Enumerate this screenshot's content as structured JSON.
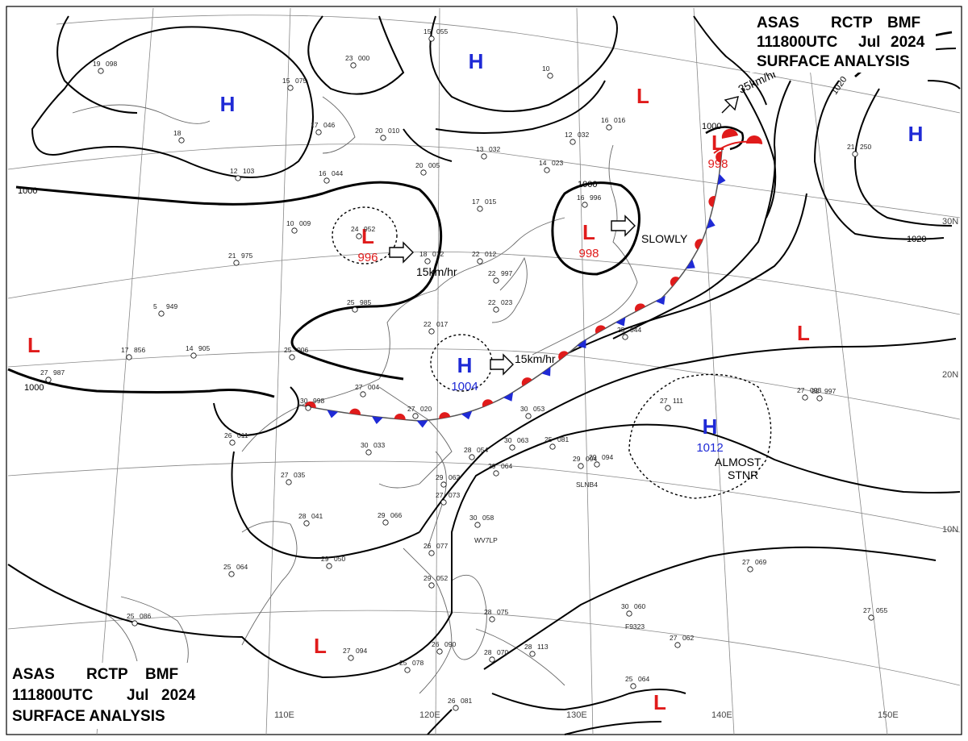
{
  "header": {
    "line1": [
      "ASAS",
      "RCTP",
      "BMF"
    ],
    "line2": [
      "111800UTC",
      "Jul",
      "2024"
    ],
    "line3": "SURFACE ANALYSIS"
  },
  "axes": {
    "lon_labels": [
      "110E",
      "120E",
      "130E",
      "140E",
      "150E"
    ],
    "lat_labels": [
      "30N",
      "20N",
      "10N"
    ]
  },
  "isobars": [
    "1000",
    "1000",
    "1000",
    "1000",
    "1020",
    "1020"
  ],
  "pressure_systems": [
    {
      "type": "H",
      "color": "#1f2ad6"
    },
    {
      "type": "H",
      "color": "#1f2ad6"
    },
    {
      "type": "H",
      "color": "#1f2ad6"
    },
    {
      "type": "L",
      "color": "#e01b1b"
    },
    {
      "type": "L",
      "color": "#e01b1b",
      "pressure": "996"
    },
    {
      "type": "L",
      "color": "#e01b1b",
      "pressure": "998"
    },
    {
      "type": "L",
      "color": "#e01b1b",
      "pressure": "998"
    },
    {
      "type": "L",
      "color": "#e01b1b"
    },
    {
      "type": "L",
      "color": "#e01b1b"
    },
    {
      "type": "H",
      "color": "#1f2ad6",
      "pressure": "1004"
    },
    {
      "type": "H",
      "color": "#1f2ad6",
      "pressure": "1012"
    },
    {
      "type": "L",
      "color": "#e01b1b"
    },
    {
      "type": "L",
      "color": "#e01b1b"
    }
  ],
  "motions": [
    "15km/hr",
    "SLOWLY",
    "35km/hr",
    "15km/hr",
    "ALMOST",
    "STNR"
  ],
  "stations": [
    {
      "t": "19",
      "p": "098"
    },
    {
      "t": "15",
      "p": "075"
    },
    {
      "t": "17",
      "p": "046"
    },
    {
      "t": "18",
      "p": ""
    },
    {
      "t": "12",
      "p": "103"
    },
    {
      "t": "23",
      "p": "000"
    },
    {
      "t": "15",
      "p": "055"
    },
    {
      "t": "20",
      "p": "010"
    },
    {
      "t": "16",
      "p": "044"
    },
    {
      "t": "20",
      "p": "005"
    },
    {
      "t": "13",
      "p": "032"
    },
    {
      "t": "14",
      "p": "023"
    },
    {
      "t": "12",
      "p": "032"
    },
    {
      "t": "10",
      "p": ""
    },
    {
      "t": "16",
      "p": "016"
    },
    {
      "t": "10",
      "p": "009"
    },
    {
      "t": "24",
      "p": "952"
    },
    {
      "t": "21",
      "p": "975"
    },
    {
      "t": "18",
      "p": "012"
    },
    {
      "t": "22",
      "p": "012"
    },
    {
      "t": "17",
      "p": "015"
    },
    {
      "t": "16",
      "p": "996"
    },
    {
      "t": "22",
      "p": "997"
    },
    {
      "t": "25",
      "p": "985"
    },
    {
      "t": "5",
      "p": "949"
    },
    {
      "t": "22",
      "p": "017"
    },
    {
      "t": "22",
      "p": "023"
    },
    {
      "t": "17",
      "p": "856"
    },
    {
      "t": "14",
      "p": "905"
    },
    {
      "t": "27",
      "p": "987"
    },
    {
      "t": "25",
      "p": "006"
    },
    {
      "t": "27",
      "p": "004"
    },
    {
      "t": "27",
      "p": "020"
    },
    {
      "t": "30",
      "p": "998"
    },
    {
      "t": "26",
      "p": "011"
    },
    {
      "t": "30",
      "p": "033"
    },
    {
      "t": "30",
      "p": "053"
    },
    {
      "t": "30",
      "p": "063"
    },
    {
      "t": "25",
      "p": "081"
    },
    {
      "t": "25",
      "p": "044"
    },
    {
      "t": "27",
      "p": "111"
    },
    {
      "t": "27",
      "p": "093"
    },
    {
      "t": "29",
      "p": "094"
    },
    {
      "t": "28",
      "p": "054"
    },
    {
      "t": "29",
      "p": "064"
    },
    {
      "t": "29",
      "p": "062"
    },
    {
      "t": "27",
      "p": "073"
    },
    {
      "t": "27",
      "p": "035"
    },
    {
      "t": "28",
      "p": "041"
    },
    {
      "t": "29",
      "p": "066"
    },
    {
      "t": "30",
      "p": "058"
    },
    {
      "t": "26",
      "p": "077"
    },
    {
      "t": "29",
      "p": "052"
    },
    {
      "t": "25",
      "p": "064"
    },
    {
      "t": "29",
      "p": "050"
    },
    {
      "t": "28",
      "p": "075"
    },
    {
      "t": "25",
      "p": "086"
    },
    {
      "t": "27",
      "p": "094"
    },
    {
      "t": "25",
      "p": "078"
    },
    {
      "t": "26",
      "p": "090"
    },
    {
      "t": "28",
      "p": "070"
    },
    {
      "t": "28",
      "p": "113"
    },
    {
      "t": "26",
      "p": "081"
    },
    {
      "t": "27",
      "p": "069"
    },
    {
      "t": "30",
      "p": "060"
    },
    {
      "t": "27",
      "p": "062"
    },
    {
      "t": "27",
      "p": "055"
    },
    {
      "t": "25",
      "p": "064"
    },
    {
      "t": "21",
      "p": "250"
    },
    {
      "t": "29",
      "p": "094"
    },
    {
      "t": "22",
      "p": "997"
    }
  ],
  "ship_ids": [
    "SLNB4",
    "WV7LP",
    "F9323"
  ]
}
